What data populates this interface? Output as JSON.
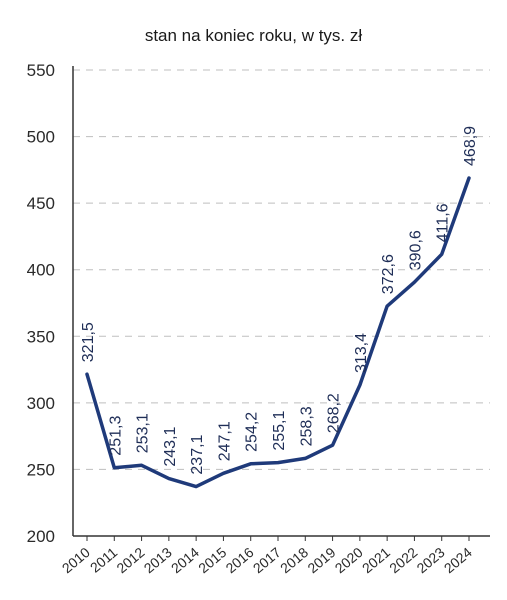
{
  "chart_data": {
    "type": "line",
    "title": "stan na koniec roku, w tys. zł",
    "xlabel": "",
    "ylabel": "",
    "ylim": [
      200,
      550
    ],
    "yticks": [
      200,
      250,
      300,
      350,
      400,
      450,
      500,
      550
    ],
    "ytick_labels": [
      "200",
      "250",
      "300",
      "350",
      "400",
      "450",
      "500",
      "550"
    ],
    "grid": true,
    "legend": "none",
    "categories": [
      "2010",
      "2011",
      "2012",
      "2013",
      "2014",
      "2015",
      "2016",
      "2017",
      "2018",
      "2019",
      "2020",
      "2021",
      "2022",
      "2023",
      "2024"
    ],
    "values": [
      321.5,
      251.3,
      253.1,
      243.1,
      237.1,
      247.1,
      254.2,
      255.1,
      258.3,
      268.2,
      313.4,
      372.6,
      390.6,
      411.6,
      468.9
    ],
    "value_labels": [
      "321,5",
      "251,3",
      "253,1",
      "243,1",
      "237,1",
      "247,1",
      "254,2",
      "255,1",
      "258,3",
      "268,2",
      "313,4",
      "372,6",
      "390,6",
      "411,6",
      "468,9"
    ],
    "line_color": "#1f3a7a",
    "grid_color": "#bfbfbf",
    "axis_color": "#333333"
  }
}
